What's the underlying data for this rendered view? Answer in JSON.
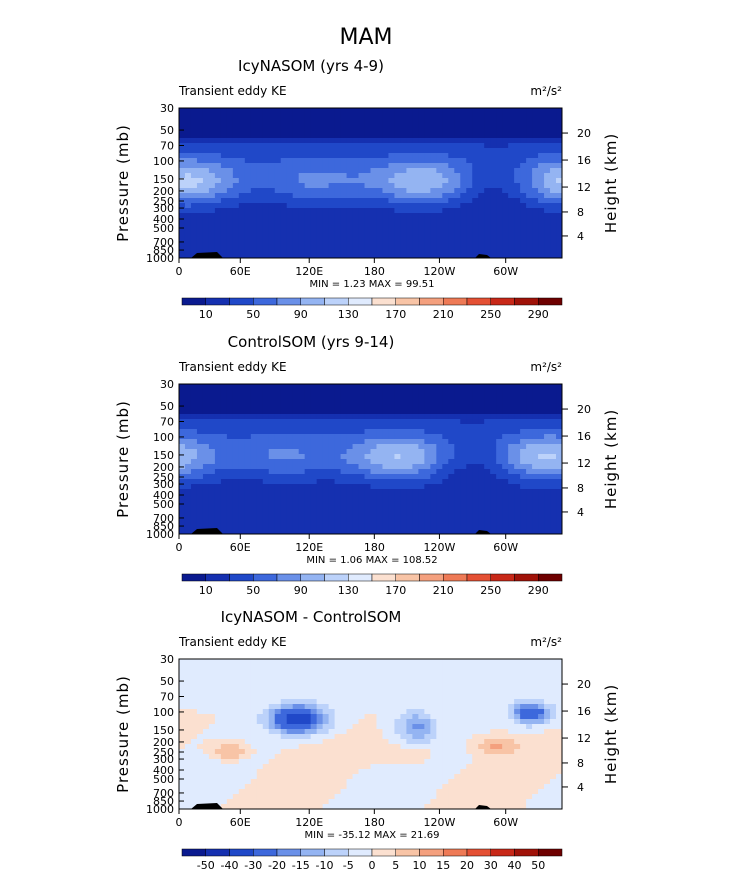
{
  "figure": {
    "title": "MAM"
  },
  "chart_data": [
    {
      "type": "heatmap",
      "title": "IcyNASOM (yrs 4-9)",
      "left_label": "Transient eddy KE",
      "units": "m²/s²",
      "xlabel": "",
      "ylabel": "Pressure  (mb)",
      "ylabel_right": "Height  (km)",
      "x_ticks": [
        "0",
        "60E",
        "120E",
        "180",
        "120W",
        "60W"
      ],
      "y_ticks": [
        "30",
        "50",
        "70",
        "100",
        "150",
        "200",
        "250",
        "300",
        "400",
        "500",
        "700",
        "850",
        "1000"
      ],
      "y_right_ticks": [
        "20",
        "16",
        "12",
        "8",
        "4"
      ],
      "stats_text": "MIN =    1.23   MAX =   99.51",
      "min": 1.23,
      "max": 99.51,
      "colorbar": {
        "labels": [
          "10",
          "50",
          "90",
          "130",
          "170",
          "210",
          "250",
          "290"
        ],
        "levels": [
          10,
          30,
          50,
          70,
          90,
          110,
          130,
          150,
          170,
          190,
          210,
          230,
          250,
          270,
          290
        ],
        "colors": [
          "#0a1a8f",
          "#1530b0",
          "#2048c8",
          "#3d68dc",
          "#6a90e8",
          "#94b4f2",
          "#bcd2fa",
          "#e0ebfe",
          "#fbe0d0",
          "#f8c4a6",
          "#f4a07e",
          "#ee7a56",
          "#e45034",
          "#c82818",
          "#a01208",
          "#6e0000"
        ]
      },
      "description": "Zonal-height section of transient eddy kinetic energy; maximum near 150-200 mb"
    },
    {
      "type": "heatmap",
      "title": "ControlSOM (yrs 9-14)",
      "left_label": "Transient eddy KE",
      "units": "m²/s²",
      "xlabel": "",
      "ylabel": "Pressure  (mb)",
      "ylabel_right": "Height  (km)",
      "x_ticks": [
        "0",
        "60E",
        "120E",
        "180",
        "120W",
        "60W"
      ],
      "y_ticks": [
        "30",
        "50",
        "70",
        "100",
        "150",
        "200",
        "250",
        "300",
        "400",
        "500",
        "700",
        "850",
        "1000"
      ],
      "y_right_ticks": [
        "20",
        "16",
        "12",
        "8",
        "4"
      ],
      "stats_text": "MIN =    1.06   MAX =  108.52",
      "min": 1.06,
      "max": 108.52,
      "colorbar": {
        "labels": [
          "10",
          "50",
          "90",
          "130",
          "170",
          "210",
          "250",
          "290"
        ],
        "levels": [
          10,
          30,
          50,
          70,
          90,
          110,
          130,
          150,
          170,
          190,
          210,
          230,
          250,
          270,
          290
        ],
        "colors": [
          "#0a1a8f",
          "#1530b0",
          "#2048c8",
          "#3d68dc",
          "#6a90e8",
          "#94b4f2",
          "#bcd2fa",
          "#e0ebfe",
          "#fbe0d0",
          "#f8c4a6",
          "#f4a07e",
          "#ee7a56",
          "#e45034",
          "#c82818",
          "#a01208",
          "#6e0000"
        ]
      },
      "description": "Zonal-height section of transient eddy kinetic energy for the control run"
    },
    {
      "type": "heatmap",
      "title": "IcyNASOM - ControlSOM",
      "left_label": "Transient eddy KE",
      "units": "m²/s²",
      "xlabel": "",
      "ylabel": "Pressure  (mb)",
      "ylabel_right": "Height  (km)",
      "x_ticks": [
        "0",
        "60E",
        "120E",
        "180",
        "120W",
        "60W"
      ],
      "y_ticks": [
        "30",
        "50",
        "70",
        "100",
        "150",
        "200",
        "250",
        "300",
        "400",
        "500",
        "700",
        "850",
        "1000"
      ],
      "y_right_ticks": [
        "20",
        "16",
        "12",
        "8",
        "4"
      ],
      "stats_text": "MIN =  -35.12   MAX =   21.69",
      "min": -35.12,
      "max": 21.69,
      "colorbar": {
        "labels": [
          "-50",
          "-40",
          "-30",
          "-20",
          "-15",
          "-10",
          "-5",
          "0",
          "5",
          "10",
          "15",
          "20",
          "30",
          "40",
          "50"
        ],
        "levels": [
          -50,
          -40,
          -30,
          -20,
          -15,
          -10,
          -5,
          0,
          5,
          10,
          15,
          20,
          30,
          40,
          50
        ],
        "colors": [
          "#0a1a8f",
          "#1530b0",
          "#2048c8",
          "#3d68dc",
          "#6a90e8",
          "#94b4f2",
          "#bcd2fa",
          "#e0ebfe",
          "#fbe0d0",
          "#f8c4a6",
          "#f4a07e",
          "#ee7a56",
          "#e45034",
          "#c82818",
          "#a01208",
          "#6e0000"
        ]
      },
      "description": "Difference field; negative values (blue) near 100-150 mb around 120E and 60W, positive (red) near 200-300 mb"
    }
  ]
}
